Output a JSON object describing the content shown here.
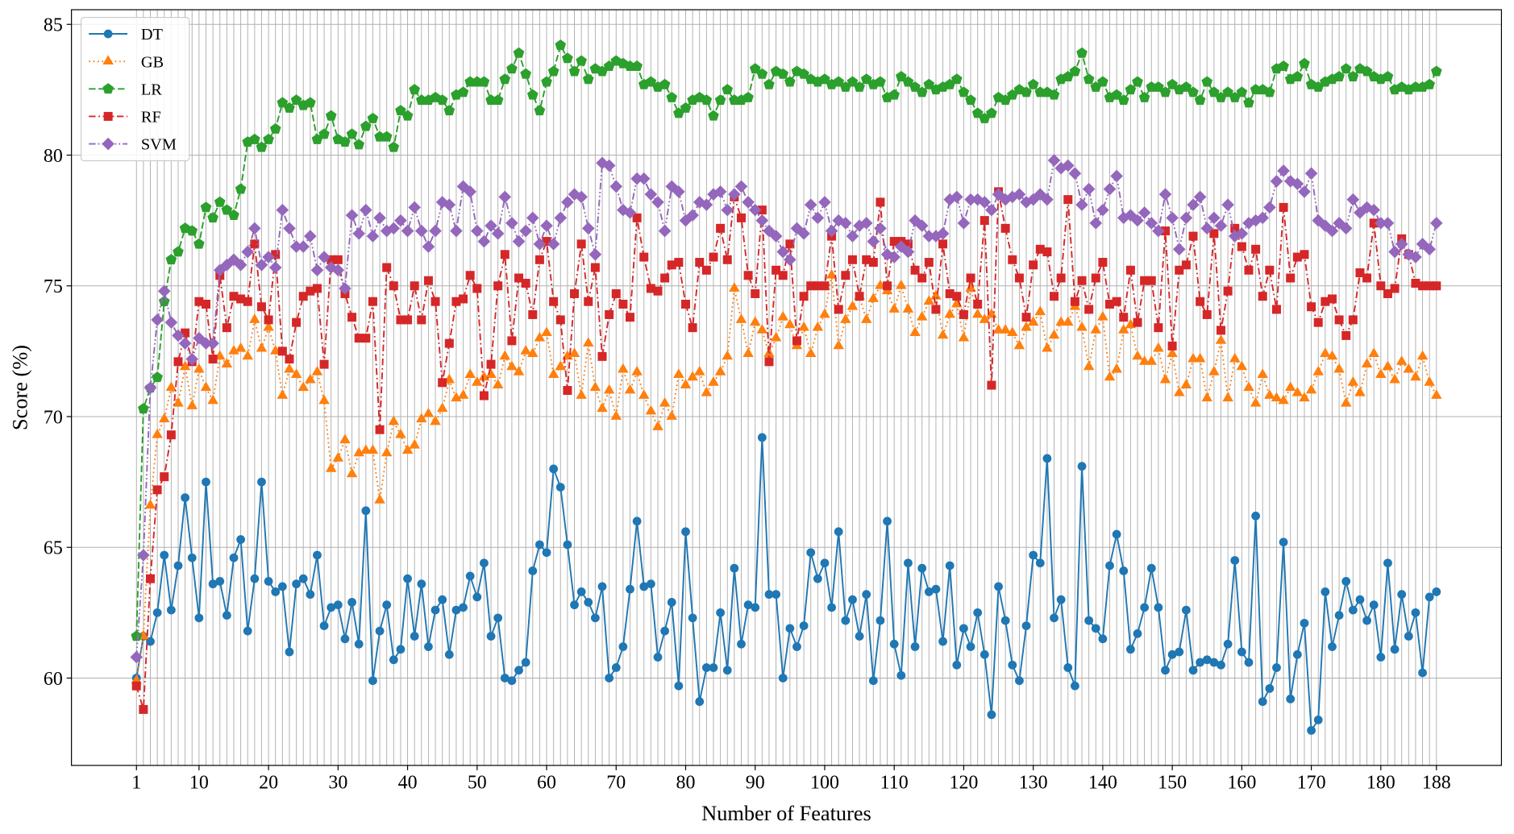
{
  "chart_data": {
    "type": "line",
    "xlabel": "Number of Features",
    "ylabel": "Score (%)",
    "xlim": [
      -8.35,
      197.35
    ],
    "ylim": [
      56.66,
      85.56
    ],
    "xticks": [
      1,
      10,
      20,
      30,
      40,
      50,
      60,
      70,
      80,
      90,
      100,
      110,
      120,
      130,
      140,
      150,
      160,
      170,
      180,
      188
    ],
    "yticks": [
      60,
      65,
      70,
      75,
      80,
      85
    ],
    "grid": true,
    "legend": "upper left",
    "x": [
      1,
      2,
      3,
      4,
      5,
      6,
      7,
      8,
      9,
      10,
      11,
      12,
      13,
      14,
      15,
      16,
      17,
      18,
      19,
      20,
      21,
      22,
      23,
      24,
      25,
      26,
      27,
      28,
      29,
      30,
      31,
      32,
      33,
      34,
      35,
      36,
      37,
      38,
      39,
      40,
      41,
      42,
      43,
      44,
      45,
      46,
      47,
      48,
      49,
      50,
      51,
      52,
      53,
      54,
      55,
      56,
      57,
      58,
      59,
      60,
      61,
      62,
      63,
      64,
      65,
      66,
      67,
      68,
      69,
      70,
      71,
      72,
      73,
      74,
      75,
      76,
      77,
      78,
      79,
      80,
      81,
      82,
      83,
      84,
      85,
      86,
      87,
      88,
      89,
      90,
      91,
      92,
      93,
      94,
      95,
      96,
      97,
      98,
      99,
      100,
      101,
      102,
      103,
      104,
      105,
      106,
      107,
      108,
      109,
      110,
      111,
      112,
      113,
      114,
      115,
      116,
      117,
      118,
      119,
      120,
      121,
      122,
      123,
      124,
      125,
      126,
      127,
      128,
      129,
      130,
      131,
      132,
      133,
      134,
      135,
      136,
      137,
      138,
      139,
      140,
      141,
      142,
      143,
      144,
      145,
      146,
      147,
      148,
      149,
      150,
      151,
      152,
      153,
      154,
      155,
      156,
      157,
      158,
      159,
      160,
      161,
      162,
      163,
      164,
      165,
      166,
      167,
      168,
      169,
      170,
      171,
      172,
      173,
      174,
      175,
      176,
      177,
      178,
      179,
      180,
      181,
      182,
      183,
      184,
      185,
      186,
      187,
      188
    ],
    "series": [
      {
        "name": "DT",
        "color": "#1f77b4",
        "linestyle": "solid",
        "marker": "circle",
        "values": [
          60.0,
          61.6,
          61.4,
          62.5,
          64.7,
          62.6,
          64.3,
          66.9,
          64.6,
          62.3,
          67.5,
          63.6,
          63.7,
          62.4,
          64.6,
          65.3,
          61.8,
          63.8,
          67.5,
          63.7,
          63.3,
          63.5,
          61.0,
          63.6,
          63.8,
          63.2,
          64.7,
          62.0,
          62.7,
          62.8,
          61.5,
          62.9,
          61.3,
          66.4,
          59.9,
          61.8,
          62.8,
          60.7,
          61.1,
          63.8,
          61.6,
          63.6,
          61.2,
          62.6,
          63.0,
          60.9,
          62.6,
          62.7,
          63.9,
          63.1,
          64.4,
          61.6,
          62.3,
          60.0,
          59.9,
          60.3,
          60.6,
          64.1,
          65.1,
          64.8,
          68.0,
          67.3,
          65.1,
          62.8,
          63.3,
          62.9,
          62.3,
          63.5,
          60.0,
          60.4,
          61.2,
          63.4,
          66.0,
          63.5,
          63.6,
          60.8,
          61.8,
          62.9,
          59.7,
          65.6,
          62.3,
          59.1,
          60.4,
          60.4,
          62.5,
          60.3,
          64.2,
          61.3,
          62.8,
          62.7,
          69.2,
          63.2,
          63.2,
          60.0,
          61.9,
          61.2,
          62.0,
          64.8,
          63.8,
          64.4,
          62.7,
          65.6,
          62.2,
          63.0,
          61.6,
          63.2,
          59.9,
          62.2,
          66.0,
          61.3,
          60.1,
          64.4,
          61.2,
          64.2,
          63.3,
          63.4,
          61.4,
          64.3,
          60.5,
          61.9,
          61.2,
          62.5,
          60.9,
          58.6,
          63.5,
          62.2,
          60.5,
          59.9,
          62.0,
          64.7,
          64.4,
          68.4,
          62.3,
          63.0,
          60.4,
          59.7,
          68.1,
          62.2,
          61.9,
          61.5,
          64.3,
          65.5,
          64.1,
          61.1,
          61.7,
          62.7,
          64.2,
          62.7,
          60.3,
          60.9,
          61.0,
          62.6,
          60.3,
          60.6,
          60.7,
          60.6,
          60.5,
          61.3,
          64.5,
          61.0,
          60.6,
          66.2,
          59.1,
          59.6,
          60.4,
          65.2,
          59.2,
          60.9,
          62.1,
          58.0,
          58.4,
          63.3,
          61.2,
          62.4,
          63.7,
          62.6,
          63.0,
          62.2,
          62.8,
          60.8,
          64.4,
          61.1,
          63.2,
          61.6,
          62.5,
          60.2,
          63.1,
          63.3
        ]
      },
      {
        "name": "GB",
        "color": "#ff7f0e",
        "linestyle": "dotted",
        "marker": "triangle",
        "values": [
          59.9,
          61.6,
          66.6,
          69.3,
          69.9,
          71.1,
          70.5,
          71.9,
          70.4,
          71.8,
          71.1,
          70.6,
          72.3,
          72.0,
          72.5,
          72.6,
          72.3,
          73.7,
          72.6,
          73.4,
          72.5,
          70.8,
          71.8,
          71.6,
          71.1,
          71.4,
          71.7,
          70.6,
          68.0,
          68.4,
          69.1,
          67.8,
          68.6,
          68.7,
          68.7,
          66.8,
          68.6,
          69.8,
          69.3,
          68.7,
          68.9,
          69.9,
          70.1,
          69.8,
          70.3,
          71.4,
          70.7,
          70.8,
          71.6,
          71.3,
          71.5,
          71.6,
          71.2,
          72.3,
          71.9,
          71.7,
          72.5,
          72.4,
          73.0,
          73.2,
          71.6,
          71.9,
          72.3,
          72.4,
          70.8,
          72.8,
          71.1,
          70.3,
          71.0,
          70.0,
          71.8,
          71.0,
          71.7,
          70.8,
          70.2,
          69.6,
          70.5,
          70.0,
          71.6,
          71.2,
          71.5,
          71.7,
          70.9,
          71.3,
          71.7,
          72.3,
          74.9,
          73.7,
          72.4,
          73.6,
          73.3,
          72.4,
          73.0,
          73.8,
          73.5,
          72.7,
          73.4,
          72.4,
          73.4,
          73.9,
          75.4,
          72.7,
          73.7,
          74.2,
          74.6,
          73.7,
          74.5,
          75.0,
          74.8,
          74.1,
          75.0,
          74.1,
          73.2,
          73.8,
          74.4,
          74.6,
          73.1,
          73.9,
          74.3,
          73.0,
          74.9,
          73.9,
          73.7,
          73.9,
          73.3,
          73.3,
          73.2,
          72.7,
          73.4,
          73.6,
          74.0,
          72.6,
          73.1,
          73.6,
          73.6,
          74.2,
          73.4,
          71.9,
          73.3,
          73.8,
          71.5,
          71.8,
          73.3,
          73.5,
          72.3,
          72.1,
          72.1,
          72.6,
          71.4,
          72.4,
          70.9,
          71.2,
          72.2,
          72.2,
          70.7,
          71.7,
          72.9,
          70.7,
          72.2,
          71.9,
          71.1,
          70.5,
          71.6,
          70.8,
          70.7,
          70.6,
          71.1,
          70.9,
          70.7,
          71.0,
          71.7,
          72.4,
          72.3,
          71.8,
          70.5,
          71.3,
          70.9,
          72.0,
          72.4,
          71.6,
          71.9,
          71.4,
          72.1,
          71.8,
          71.5,
          72.3,
          71.3,
          70.8
        ]
      },
      {
        "name": "LR",
        "color": "#2ca02c",
        "linestyle": "dashed",
        "marker": "pentagon",
        "values": [
          61.6,
          70.3,
          71.1,
          71.5,
          74.4,
          76.0,
          76.3,
          77.2,
          77.1,
          76.6,
          78.0,
          77.6,
          78.2,
          77.9,
          77.7,
          78.7,
          80.5,
          80.6,
          80.3,
          80.6,
          81.0,
          82.0,
          81.8,
          82.1,
          81.9,
          82.0,
          80.6,
          80.8,
          81.5,
          80.6,
          80.5,
          80.8,
          80.4,
          81.1,
          81.4,
          80.7,
          80.7,
          80.3,
          81.7,
          81.5,
          82.5,
          82.1,
          82.1,
          82.2,
          82.1,
          81.7,
          82.3,
          82.4,
          82.8,
          82.8,
          82.8,
          82.1,
          82.1,
          82.9,
          83.3,
          83.9,
          83.1,
          82.3,
          81.7,
          82.8,
          83.2,
          84.2,
          83.7,
          83.2,
          83.6,
          82.9,
          83.3,
          83.2,
          83.4,
          83.6,
          83.5,
          83.4,
          83.4,
          82.7,
          82.8,
          82.6,
          82.7,
          82.2,
          81.6,
          81.8,
          82.1,
          82.2,
          82.1,
          81.5,
          82.1,
          82.5,
          82.1,
          82.1,
          82.2,
          83.3,
          83.1,
          82.7,
          83.2,
          83.1,
          82.8,
          83.2,
          83.1,
          82.9,
          82.8,
          82.9,
          82.7,
          82.8,
          82.6,
          82.8,
          82.6,
          82.9,
          82.7,
          82.8,
          82.2,
          82.3,
          83.0,
          82.8,
          82.6,
          82.4,
          82.7,
          82.5,
          82.6,
          82.7,
          82.9,
          82.4,
          82.1,
          81.6,
          81.4,
          81.6,
          82.2,
          82.1,
          82.3,
          82.5,
          82.4,
          82.7,
          82.4,
          82.4,
          82.3,
          82.9,
          83.0,
          83.2,
          83.9,
          82.9,
          82.6,
          82.8,
          82.2,
          82.3,
          82.1,
          82.5,
          82.8,
          82.2,
          82.6,
          82.6,
          82.4,
          82.7,
          82.5,
          82.6,
          82.4,
          82.1,
          82.8,
          82.4,
          82.2,
          82.4,
          82.2,
          82.4,
          82.0,
          82.5,
          82.5,
          82.4,
          83.3,
          83.4,
          82.9,
          83.0,
          83.5,
          82.7,
          82.6,
          82.8,
          82.9,
          83.0,
          83.3,
          83.0,
          83.3,
          83.2,
          83.0,
          82.9,
          83.0,
          82.5,
          82.6,
          82.5,
          82.6,
          82.6,
          82.7,
          83.2
        ]
      },
      {
        "name": "RF",
        "color": "#d62728",
        "linestyle": "dashdot",
        "marker": "square",
        "values": [
          59.7,
          58.8,
          63.8,
          67.2,
          67.7,
          69.3,
          72.1,
          73.2,
          72.1,
          74.4,
          74.3,
          72.2,
          75.4,
          73.4,
          74.6,
          74.5,
          74.4,
          76.6,
          74.2,
          73.7,
          76.2,
          72.5,
          72.2,
          73.6,
          74.6,
          74.8,
          74.9,
          72.0,
          76.0,
          76.0,
          74.7,
          73.8,
          73.0,
          73.0,
          74.4,
          69.5,
          75.7,
          75.0,
          73.7,
          73.7,
          75.0,
          73.7,
          75.2,
          74.4,
          71.3,
          72.8,
          74.4,
          74.5,
          75.4,
          74.9,
          70.8,
          72.0,
          75.0,
          76.2,
          72.9,
          75.3,
          75.1,
          73.9,
          76.0,
          76.7,
          74.4,
          73.7,
          71.0,
          74.7,
          76.6,
          74.4,
          75.7,
          72.3,
          73.9,
          74.7,
          74.3,
          73.8,
          77.6,
          76.1,
          74.9,
          74.8,
          75.3,
          75.8,
          75.9,
          74.3,
          73.4,
          75.9,
          75.6,
          76.1,
          77.2,
          76.0,
          78.4,
          77.6,
          75.4,
          74.7,
          77.9,
          72.1,
          75.6,
          75.4,
          76.6,
          72.9,
          74.6,
          75.0,
          75.0,
          75.0,
          76.9,
          74.1,
          75.4,
          76.0,
          74.6,
          76.0,
          75.9,
          78.2,
          75.0,
          76.7,
          76.7,
          76.6,
          75.6,
          75.3,
          75.9,
          74.1,
          76.6,
          74.7,
          74.6,
          73.9,
          75.3,
          74.3,
          77.5,
          71.2,
          78.6,
          77.2,
          76.0,
          75.3,
          73.8,
          75.8,
          76.4,
          76.3,
          74.6,
          75.3,
          78.3,
          74.4,
          75.2,
          74.1,
          75.3,
          75.9,
          74.3,
          74.4,
          73.8,
          75.6,
          73.6,
          75.2,
          75.2,
          73.4,
          77.1,
          72.7,
          75.6,
          75.8,
          76.9,
          74.4,
          73.9,
          77.0,
          73.3,
          74.8,
          77.2,
          76.5,
          75.6,
          76.4,
          74.6,
          75.6,
          74.1,
          78.0,
          75.3,
          76.1,
          76.2,
          74.2,
          73.6,
          74.4,
          74.5,
          73.7,
          73.1,
          73.7,
          75.5,
          75.3,
          77.4,
          75.0,
          74.7,
          74.9,
          76.8,
          76.2,
          75.1,
          75.0,
          75.0,
          75.0
        ]
      },
      {
        "name": "SVM",
        "color": "#9467bd",
        "linestyle": "dashdotdot",
        "marker": "diamond",
        "values": [
          60.8,
          64.7,
          71.1,
          73.7,
          74.8,
          73.6,
          73.1,
          72.8,
          72.2,
          73.0,
          72.8,
          72.8,
          75.6,
          75.8,
          76.0,
          75.8,
          76.3,
          77.2,
          75.8,
          76.1,
          75.7,
          77.9,
          77.2,
          76.5,
          76.5,
          76.9,
          75.6,
          76.1,
          75.7,
          75.6,
          74.9,
          77.7,
          77.0,
          77.9,
          76.9,
          77.6,
          77.1,
          77.2,
          77.5,
          77.1,
          78.0,
          77.1,
          76.5,
          77.1,
          78.2,
          78.1,
          77.1,
          78.8,
          78.6,
          77.1,
          76.7,
          77.3,
          77.0,
          78.4,
          77.4,
          76.7,
          77.1,
          77.6,
          76.6,
          77.3,
          76.6,
          77.6,
          78.2,
          78.5,
          78.4,
          77.2,
          76.2,
          79.7,
          79.6,
          78.8,
          77.9,
          77.8,
          79.1,
          79.1,
          78.5,
          78.2,
          77.1,
          78.8,
          78.6,
          77.5,
          77.7,
          78.2,
          78.1,
          78.5,
          78.6,
          77.9,
          78.5,
          78.8,
          78.2,
          77.9,
          77.5,
          77.1,
          76.9,
          76.3,
          76.0,
          77.2,
          77.0,
          78.1,
          77.6,
          78.2,
          77.1,
          77.5,
          77.4,
          76.9,
          77.3,
          77.4,
          76.7,
          77.2,
          76.2,
          76.1,
          76.5,
          76.3,
          77.5,
          77.3,
          76.9,
          76.9,
          77.0,
          78.3,
          78.4,
          77.4,
          78.3,
          78.3,
          78.2,
          77.9,
          78.5,
          78.3,
          78.4,
          78.5,
          78.2,
          78.3,
          78.5,
          78.3,
          79.8,
          79.5,
          79.6,
          79.3,
          78.1,
          78.7,
          77.4,
          77.9,
          78.7,
          79.2,
          77.6,
          77.7,
          77.5,
          77.8,
          77.4,
          77.1,
          78.5,
          77.6,
          76.4,
          77.6,
          78.1,
          78.4,
          77.2,
          77.6,
          77.3,
          78.1,
          76.9,
          77.0,
          77.4,
          77.5,
          77.6,
          78.0,
          79.0,
          79.4,
          79.0,
          78.9,
          78.6,
          79.3,
          77.5,
          77.3,
          77.1,
          77.4,
          77.2,
          78.3,
          77.8,
          78.0,
          77.9,
          77.4,
          77.4,
          76.3,
          76.6,
          76.2,
          76.1,
          76.6,
          76.4,
          77.4
        ]
      }
    ]
  }
}
